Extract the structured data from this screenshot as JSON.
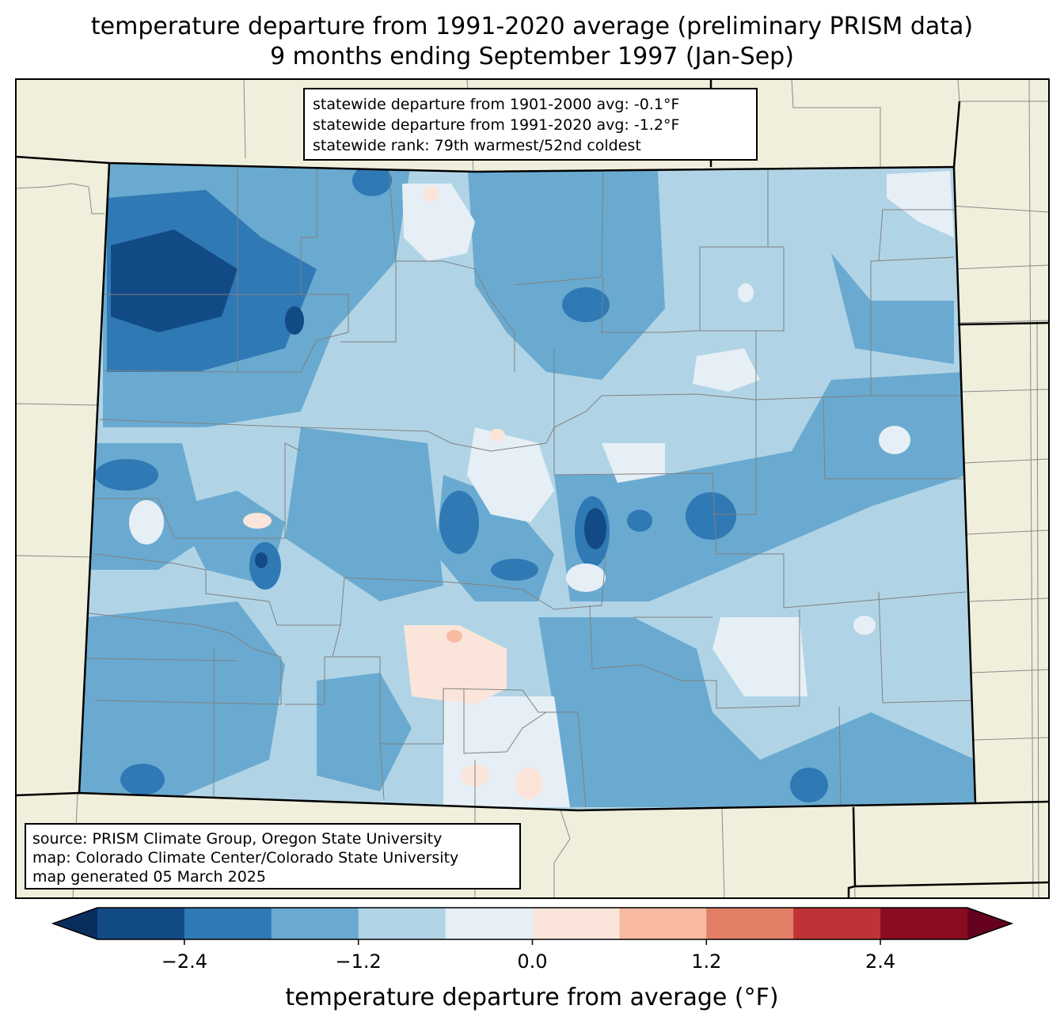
{
  "title_line1": "temperature departure from 1991-2020 average (preliminary PRISM data)",
  "title_line2": "9 months ending September 1997 (Jan-Sep)",
  "stats": {
    "line1": "statewide departure from 1901-2000 avg: -0.1°F",
    "line2": "statewide departure from 1991-2020 avg: -1.2°F",
    "line3": "statewide rank: 79th warmest/52nd coldest"
  },
  "credits": {
    "line1": "source: PRISM Climate Group, Oregon State University",
    "line2": "map: Colorado Climate Center/Colorado State University",
    "line3": "map generated 05 March 2025"
  },
  "colorbar": {
    "label": "temperature departure from average (°F)",
    "levels": [
      -3.0,
      -2.4,
      -1.8,
      -1.2,
      -0.6,
      0.0,
      0.6,
      1.2,
      1.8,
      2.4,
      3.0
    ],
    "colors": [
      "#124a86",
      "#2f79b5",
      "#6aaad0",
      "#b0d4e6",
      "#e6eff6",
      "#fbe5da",
      "#f8bba2",
      "#e17f66",
      "#bf3337",
      "#890c23"
    ],
    "under_color": "#082e5e",
    "over_color": "#660220",
    "ticks": [
      {
        "value": -2.4,
        "label": "−2.4"
      },
      {
        "value": -1.2,
        "label": "−1.2"
      },
      {
        "value": 0.0,
        "label": "0.0"
      },
      {
        "value": 1.2,
        "label": "1.2"
      },
      {
        "value": 2.4,
        "label": "2.4"
      }
    ]
  },
  "colors": {
    "land_outside": "#efefdc",
    "county_lines": "#808080",
    "state_border": "#000000"
  }
}
